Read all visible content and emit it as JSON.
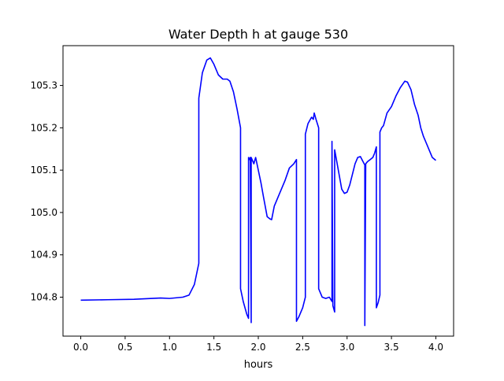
{
  "chart_data": {
    "type": "line",
    "title": "Water Depth h at gauge 530",
    "xlabel": "hours",
    "ylabel": "",
    "xlim": [
      -0.2,
      4.2
    ],
    "ylim": [
      104.708,
      105.394
    ],
    "grid": false,
    "x_ticks": [
      {
        "value": 0.0,
        "label": "0.0"
      },
      {
        "value": 0.5,
        "label": "0.5"
      },
      {
        "value": 1.0,
        "label": "1.0"
      },
      {
        "value": 1.5,
        "label": "1.5"
      },
      {
        "value": 2.0,
        "label": "2.0"
      },
      {
        "value": 2.5,
        "label": "2.5"
      },
      {
        "value": 3.0,
        "label": "3.0"
      },
      {
        "value": 3.5,
        "label": "3.5"
      },
      {
        "value": 4.0,
        "label": "4.0"
      }
    ],
    "y_ticks": [
      {
        "value": 104.8,
        "label": "104.8"
      },
      {
        "value": 104.9,
        "label": "104.9"
      },
      {
        "value": 105.0,
        "label": "105.0"
      },
      {
        "value": 105.1,
        "label": "105.1"
      },
      {
        "value": 105.2,
        "label": "105.2"
      },
      {
        "value": 105.3,
        "label": "105.3"
      }
    ],
    "series": [
      {
        "color": "#0000ff",
        "points": [
          [
            0.0,
            104.793
          ],
          [
            0.3,
            104.794
          ],
          [
            0.6,
            104.795
          ],
          [
            0.9,
            104.798
          ],
          [
            1.0,
            104.797
          ],
          [
            1.15,
            104.8
          ],
          [
            1.22,
            104.805
          ],
          [
            1.28,
            104.83
          ],
          [
            1.33,
            104.88
          ],
          [
            1.33,
            105.27
          ],
          [
            1.37,
            105.33
          ],
          [
            1.42,
            105.36
          ],
          [
            1.46,
            105.365
          ],
          [
            1.5,
            105.35
          ],
          [
            1.55,
            105.325
          ],
          [
            1.6,
            105.315
          ],
          [
            1.65,
            105.315
          ],
          [
            1.68,
            105.31
          ],
          [
            1.72,
            105.285
          ],
          [
            1.76,
            105.245
          ],
          [
            1.8,
            105.2
          ],
          [
            1.8,
            104.82
          ],
          [
            1.83,
            104.79
          ],
          [
            1.87,
            104.76
          ],
          [
            1.89,
            104.75
          ],
          [
            1.89,
            105.13
          ],
          [
            1.9,
            105.125
          ],
          [
            1.91,
            105.13
          ],
          [
            1.92,
            104.74
          ],
          [
            1.92,
            105.13
          ],
          [
            1.95,
            105.115
          ],
          [
            1.97,
            105.13
          ],
          [
            1.98,
            105.12
          ],
          [
            2.0,
            105.1
          ],
          [
            2.03,
            105.07
          ],
          [
            2.06,
            105.035
          ],
          [
            2.1,
            104.99
          ],
          [
            2.13,
            104.985
          ],
          [
            2.15,
            104.983
          ],
          [
            2.18,
            105.015
          ],
          [
            2.22,
            105.035
          ],
          [
            2.26,
            105.055
          ],
          [
            2.3,
            105.075
          ],
          [
            2.35,
            105.105
          ],
          [
            2.4,
            105.115
          ],
          [
            2.43,
            105.125
          ],
          [
            2.43,
            104.743
          ],
          [
            2.46,
            104.755
          ],
          [
            2.5,
            104.775
          ],
          [
            2.53,
            104.8
          ],
          [
            2.53,
            105.185
          ],
          [
            2.56,
            105.21
          ],
          [
            2.6,
            105.225
          ],
          [
            2.62,
            105.22
          ],
          [
            2.63,
            105.235
          ],
          [
            2.65,
            105.22
          ],
          [
            2.68,
            105.2
          ],
          [
            2.68,
            104.82
          ],
          [
            2.72,
            104.8
          ],
          [
            2.76,
            104.797
          ],
          [
            2.8,
            104.8
          ],
          [
            2.83,
            104.79
          ],
          [
            2.83,
            105.168
          ],
          [
            2.84,
            104.78
          ],
          [
            2.86,
            104.765
          ],
          [
            2.86,
            105.148
          ],
          [
            2.88,
            105.125
          ],
          [
            2.91,
            105.09
          ],
          [
            2.94,
            105.055
          ],
          [
            2.97,
            105.045
          ],
          [
            3.0,
            105.048
          ],
          [
            3.03,
            105.065
          ],
          [
            3.06,
            105.09
          ],
          [
            3.09,
            105.115
          ],
          [
            3.12,
            105.13
          ],
          [
            3.15,
            105.132
          ],
          [
            3.18,
            105.12
          ],
          [
            3.2,
            105.112
          ],
          [
            3.2,
            104.733
          ],
          [
            3.21,
            105.115
          ],
          [
            3.23,
            105.12
          ],
          [
            3.26,
            105.125
          ],
          [
            3.29,
            105.13
          ],
          [
            3.31,
            105.14
          ],
          [
            3.33,
            105.155
          ],
          [
            3.33,
            104.775
          ],
          [
            3.35,
            104.787
          ],
          [
            3.37,
            104.805
          ],
          [
            3.37,
            105.19
          ],
          [
            3.39,
            105.2
          ],
          [
            3.41,
            105.205
          ],
          [
            3.43,
            105.22
          ],
          [
            3.45,
            105.235
          ],
          [
            3.5,
            105.25
          ],
          [
            3.55,
            105.275
          ],
          [
            3.6,
            105.295
          ],
          [
            3.65,
            105.31
          ],
          [
            3.68,
            105.308
          ],
          [
            3.72,
            105.29
          ],
          [
            3.76,
            105.255
          ],
          [
            3.8,
            105.23
          ],
          [
            3.83,
            105.2
          ],
          [
            3.86,
            105.18
          ],
          [
            3.9,
            105.16
          ],
          [
            3.93,
            105.145
          ],
          [
            3.96,
            105.13
          ],
          [
            4.0,
            105.123
          ]
        ]
      }
    ]
  }
}
